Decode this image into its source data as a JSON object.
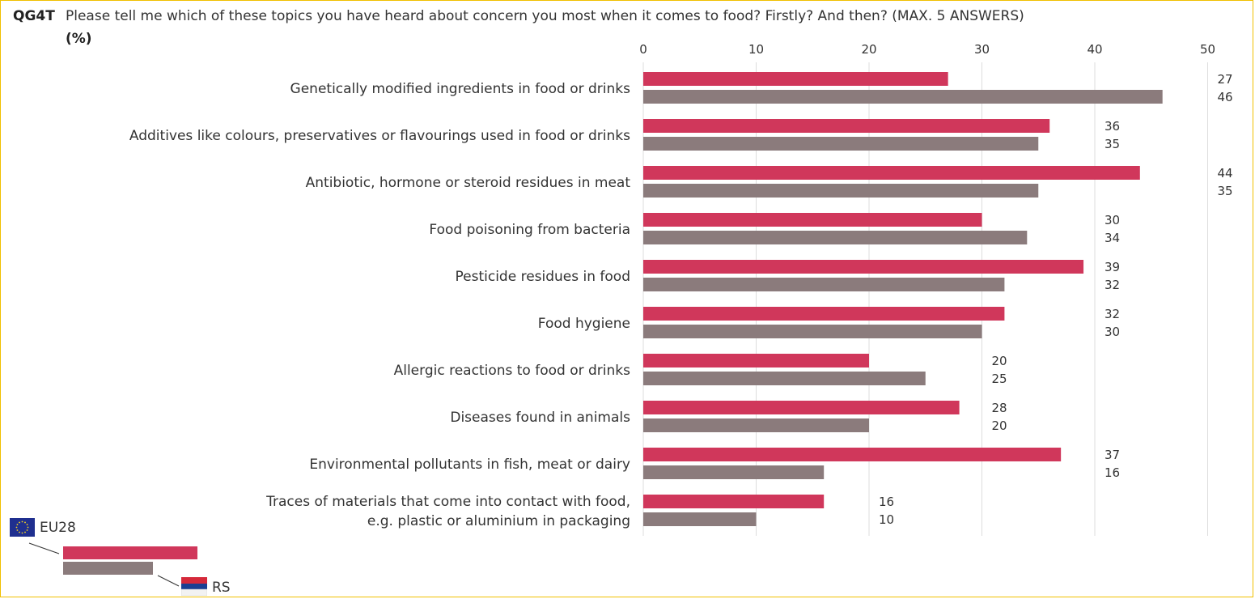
{
  "header": {
    "code": "QG4T",
    "question": "Please tell me which of these topics you have heard about concern you most when it comes to food? Firstly? And then? (MAX. 5 ANSWERS)",
    "unit": "(%)"
  },
  "chart_data": {
    "type": "bar",
    "orientation": "horizontal",
    "categories": [
      "Genetically modified ingredients in food or drinks",
      "Additives like colours, preservatives or flavourings used in food or drinks",
      "Antibiotic, hormone or steroid residues in meat",
      "Food poisoning from bacteria",
      "Pesticide residues in food",
      "Food hygiene",
      "Allergic reactions to food or drinks",
      "Diseases found in animals",
      "Environmental pollutants in fish, meat or dairy",
      "Traces of materials that come into contact with food,\ne.g. plastic or aluminium in packaging"
    ],
    "series": [
      {
        "name": "EU28",
        "color": "#d0375b",
        "values": [
          27,
          36,
          44,
          30,
          39,
          32,
          20,
          28,
          37,
          16
        ]
      },
      {
        "name": "RS",
        "color": "#8b7b7c",
        "values": [
          46,
          35,
          35,
          34,
          32,
          30,
          25,
          20,
          16,
          10
        ]
      }
    ],
    "xlim": [
      0,
      50
    ],
    "xticks": [
      0,
      10,
      20,
      30,
      40,
      50
    ],
    "grid": true,
    "legend_position": "bottom-left"
  },
  "legend": {
    "eu_label": "EU28",
    "rs_label": "RS"
  },
  "icons": {
    "eu_flag": "eu-flag-icon",
    "rs_flag": "serbia-flag-icon"
  }
}
